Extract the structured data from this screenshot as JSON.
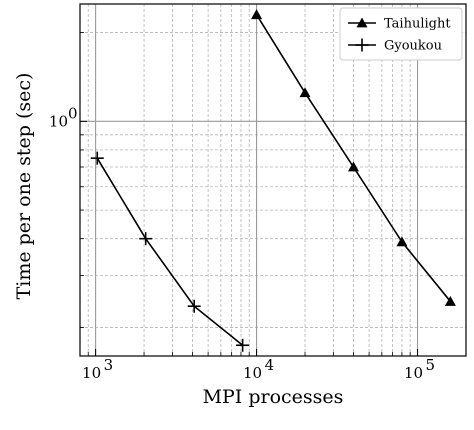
{
  "chart_data": {
    "type": "line",
    "xlabel": "MPI processes",
    "ylabel": "Time per one step (sec)",
    "xscale": "log",
    "yscale": "log",
    "xlim": [
      800,
      200000
    ],
    "ylim": [
      0.16,
      2.5
    ],
    "grid": true,
    "legend": "top-right",
    "x_ticks": [
      {
        "value": 1000,
        "base": "10",
        "exp": "3"
      },
      {
        "value": 10000,
        "base": "10",
        "exp": "4"
      },
      {
        "value": 100000,
        "base": "10",
        "exp": "5"
      }
    ],
    "y_ticks": [
      {
        "value": 1.0,
        "label": "10",
        "exp": "0"
      }
    ],
    "series": [
      {
        "name": "Taihulight",
        "marker": "triangle",
        "color": "#000000",
        "x": [
          10000,
          20000,
          40000,
          80000,
          160000
        ],
        "y": [
          2.3,
          1.25,
          0.7,
          0.39,
          0.245
        ]
      },
      {
        "name": "Gyoukou",
        "marker": "plus",
        "color": "#000000",
        "x": [
          1024,
          2048,
          4096,
          8192
        ],
        "y": [
          0.75,
          0.4,
          0.236,
          0.174
        ]
      }
    ]
  }
}
